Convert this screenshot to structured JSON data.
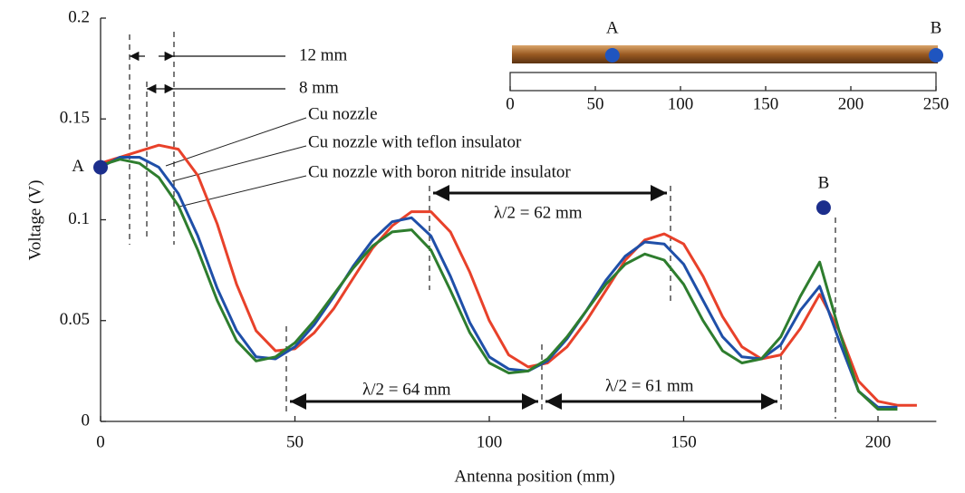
{
  "chart_data": {
    "type": "line",
    "xlabel": "Antenna position (mm)",
    "ylabel": "Voltage (V)",
    "xlim": [
      0,
      215
    ],
    "ylim": [
      0,
      0.2
    ],
    "xticks": [
      0,
      50,
      100,
      150,
      200
    ],
    "yticks": [
      0,
      0.05,
      0.1,
      0.15,
      0.2
    ],
    "x": [
      0,
      5,
      10,
      15,
      20,
      25,
      30,
      35,
      40,
      45,
      50,
      55,
      60,
      65,
      70,
      75,
      80,
      85,
      90,
      95,
      100,
      105,
      110,
      115,
      120,
      125,
      130,
      135,
      140,
      145,
      150,
      155,
      160,
      165,
      170,
      175,
      180,
      185,
      190,
      195,
      200,
      205,
      210
    ],
    "series": [
      {
        "name": "Cu nozzle",
        "color": "#e8412a",
        "values": [
          0.128,
          0.131,
          0.134,
          0.137,
          0.135,
          0.122,
          0.098,
          0.068,
          0.045,
          0.035,
          0.036,
          0.044,
          0.056,
          0.071,
          0.086,
          0.097,
          0.104,
          0.104,
          0.094,
          0.074,
          0.05,
          0.033,
          0.027,
          0.029,
          0.037,
          0.05,
          0.065,
          0.08,
          0.09,
          0.093,
          0.088,
          0.072,
          0.052,
          0.037,
          0.031,
          0.033,
          0.046,
          0.063,
          0.045,
          0.02,
          0.01,
          0.008,
          0.008
        ]
      },
      {
        "name": "Cu nozzle with teflon insulator",
        "color": "#1f4fa8",
        "values": [
          0.126,
          0.131,
          0.131,
          0.126,
          0.113,
          0.092,
          0.066,
          0.045,
          0.032,
          0.031,
          0.037,
          0.048,
          0.062,
          0.077,
          0.09,
          0.099,
          0.101,
          0.092,
          0.072,
          0.049,
          0.032,
          0.026,
          0.025,
          0.03,
          0.041,
          0.055,
          0.07,
          0.082,
          0.089,
          0.088,
          0.078,
          0.06,
          0.042,
          0.032,
          0.031,
          0.038,
          0.055,
          0.067,
          0.04,
          0.015,
          0.007,
          0.007,
          null
        ]
      },
      {
        "name": "Cu nozzle with boron nitride insulator",
        "color": "#2e7d2e",
        "values": [
          0.127,
          0.13,
          0.128,
          0.121,
          0.107,
          0.085,
          0.06,
          0.04,
          0.03,
          0.032,
          0.039,
          0.05,
          0.063,
          0.076,
          0.087,
          0.094,
          0.095,
          0.085,
          0.065,
          0.044,
          0.029,
          0.024,
          0.025,
          0.031,
          0.042,
          0.055,
          0.068,
          0.078,
          0.083,
          0.08,
          0.068,
          0.05,
          0.035,
          0.029,
          0.031,
          0.042,
          0.062,
          0.079,
          0.045,
          0.015,
          0.006,
          0.006,
          null
        ]
      }
    ],
    "markers": [
      {
        "label": "A",
        "x": 0,
        "y": 0.126
      },
      {
        "label": "B",
        "x": 186,
        "y": 0.106
      }
    ],
    "annotations": [
      "12 mm",
      "8 mm",
      "λ/2 = 62 mm",
      "λ/2 = 64 mm",
      "λ/2 = 61 mm"
    ],
    "inset": {
      "xlim": [
        0,
        250
      ],
      "xticks": [
        0,
        50,
        100,
        150,
        200,
        250
      ],
      "points": [
        {
          "label": "A",
          "x": 60
        },
        {
          "label": "B",
          "x": 250
        }
      ]
    }
  }
}
